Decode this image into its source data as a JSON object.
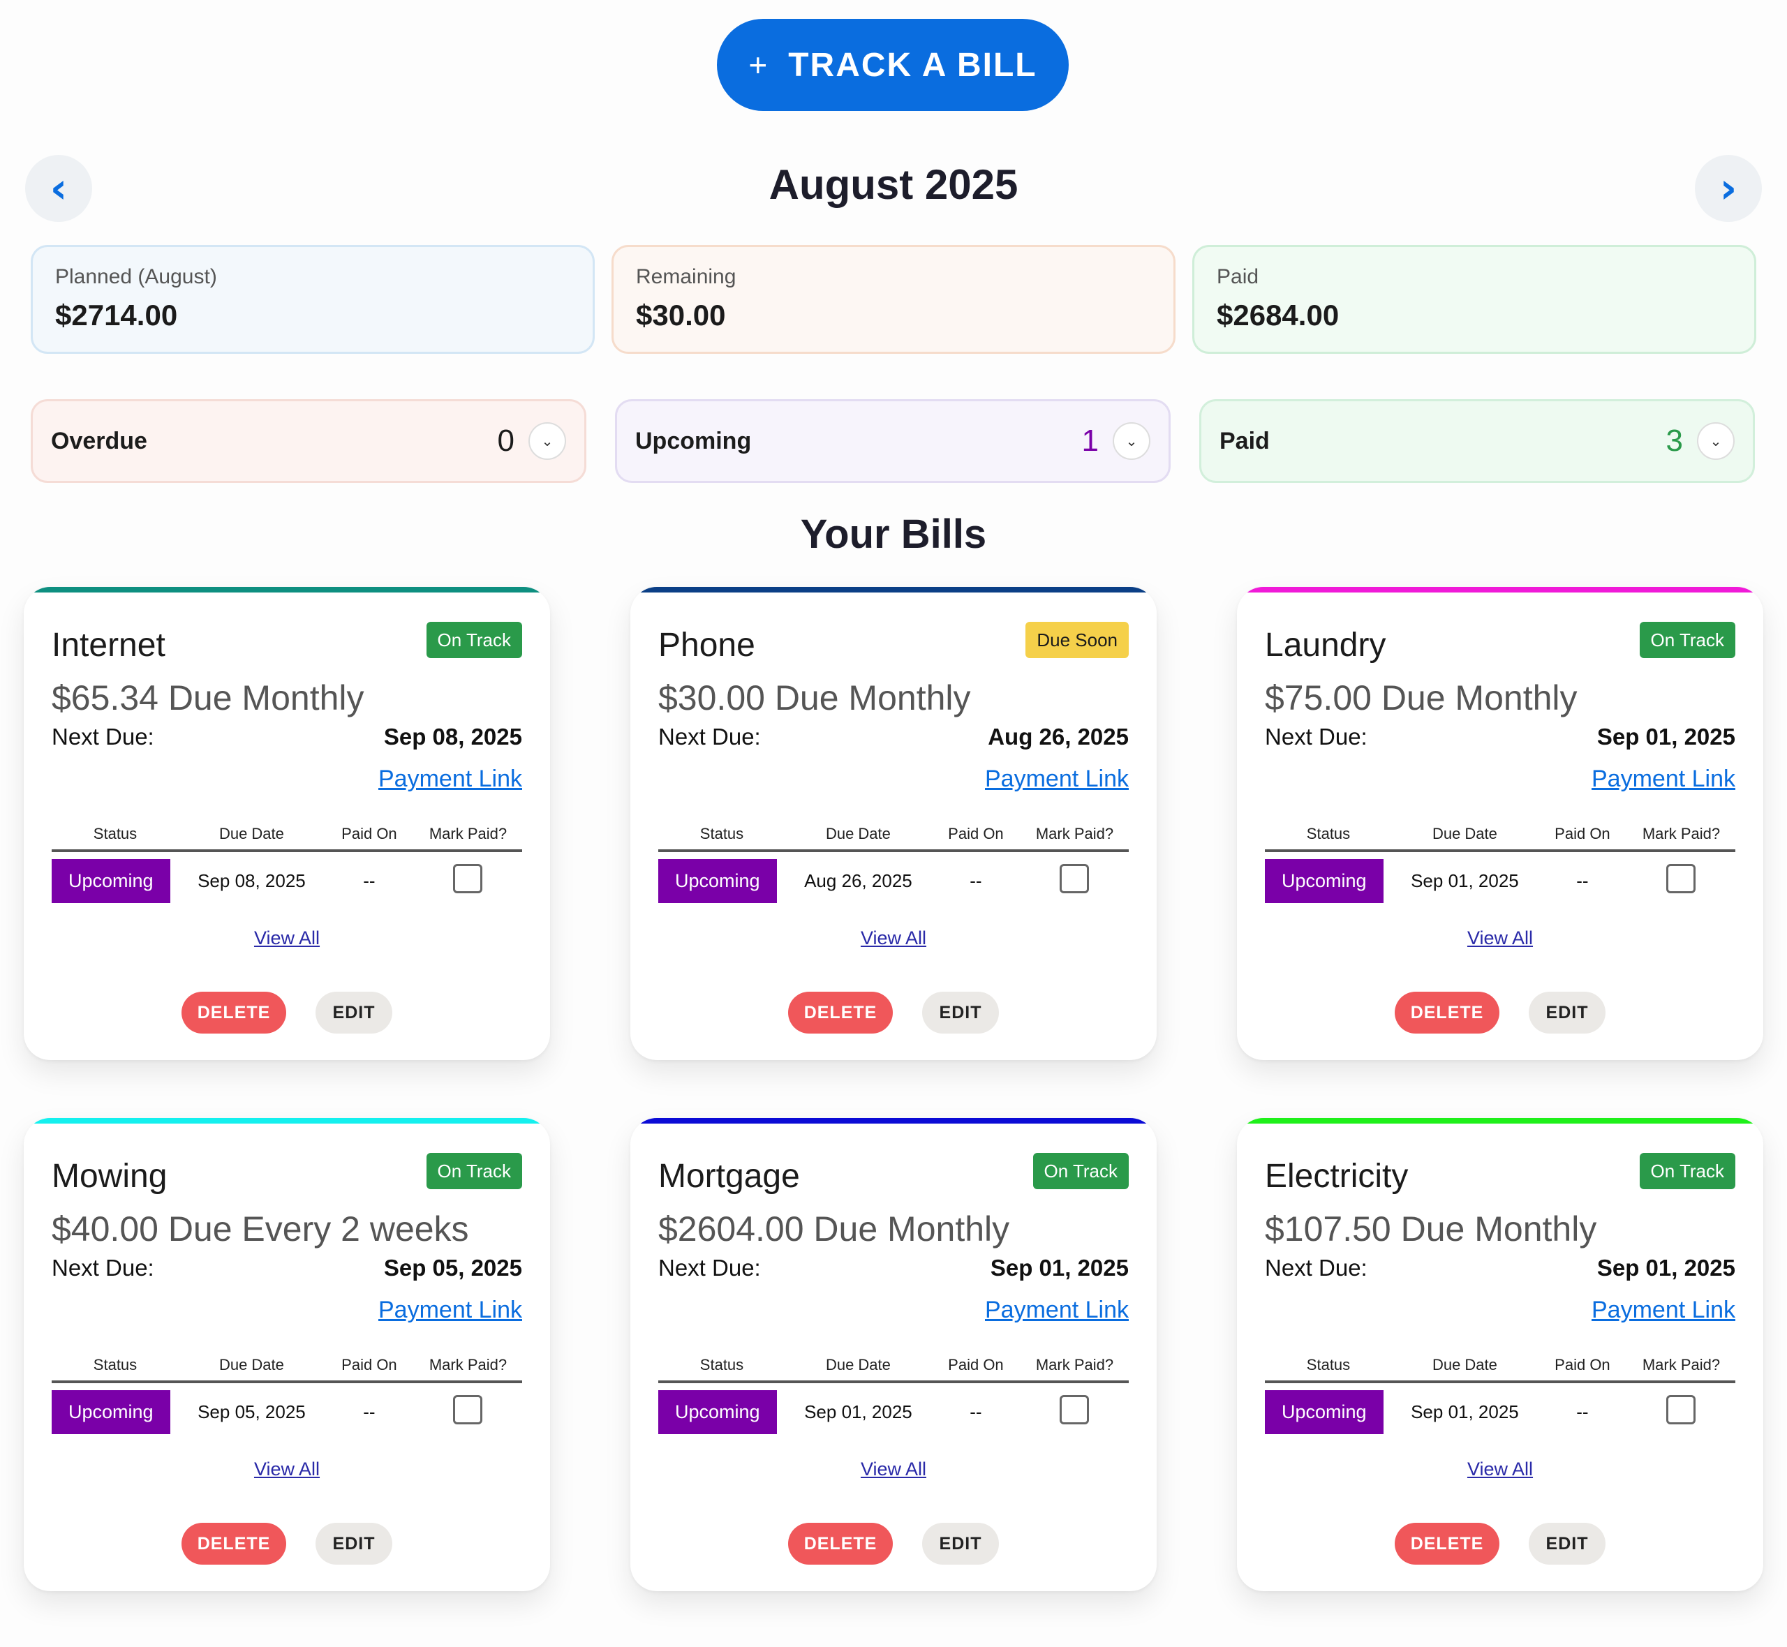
{
  "header": {
    "track_label": "TRACK A BILL",
    "plus_icon": "+",
    "month": "August 2025",
    "prev": "‹",
    "next": "›"
  },
  "summary": {
    "planned": {
      "label": "Planned (August)",
      "value": "$2714.00"
    },
    "remaining": {
      "label": "Remaining",
      "value": "$30.00"
    },
    "paid": {
      "label": "Paid",
      "value": "$2684.00"
    }
  },
  "counts": {
    "overdue": {
      "label": "Overdue",
      "count": "0",
      "color": "#1b1b1b"
    },
    "upcoming": {
      "label": "Upcoming",
      "count": "1",
      "color": "#7a00a8"
    },
    "paid": {
      "label": "Paid",
      "count": "3",
      "color": "#2a9a4a"
    }
  },
  "section_title": "Your Bills",
  "table_headers": {
    "status": "Status",
    "due": "Due Date",
    "paid_on": "Paid On",
    "mark": "Mark Paid?"
  },
  "common": {
    "next_due_label": "Next Due:",
    "payment_link": "Payment Link",
    "view_all": "View All",
    "delete": "DELETE",
    "edit": "EDIT"
  },
  "bills": [
    {
      "name": "Internet",
      "badge": "On Track",
      "amount": "$65.34 Due Monthly",
      "next_due": "Sep 08, 2025",
      "row": {
        "status": "Upcoming",
        "due": "Sep 08, 2025",
        "paid_on": "--"
      },
      "accent": "#0e8f80"
    },
    {
      "name": "Phone",
      "badge": "Due Soon",
      "amount": "$30.00 Due Monthly",
      "next_due": "Aug 26, 2025",
      "row": {
        "status": "Upcoming",
        "due": "Aug 26, 2025",
        "paid_on": "--"
      },
      "accent": "#0b3f86"
    },
    {
      "name": "Laundry",
      "badge": "On Track",
      "amount": "$75.00 Due Monthly",
      "next_due": "Sep 01, 2025",
      "row": {
        "status": "Upcoming",
        "due": "Sep 01, 2025",
        "paid_on": "--"
      },
      "accent": "#f01ad8"
    },
    {
      "name": "Mowing",
      "badge": "On Track",
      "amount": "$40.00 Due Every 2 weeks",
      "next_due": "Sep 05, 2025",
      "row": {
        "status": "Upcoming",
        "due": "Sep 05, 2025",
        "paid_on": "--"
      },
      "accent": "#14f0ee"
    },
    {
      "name": "Mortgage",
      "badge": "On Track",
      "amount": "$2604.00 Due Monthly",
      "next_due": "Sep 01, 2025",
      "row": {
        "status": "Upcoming",
        "due": "Sep 01, 2025",
        "paid_on": "--"
      },
      "accent": "#0b0bd6"
    },
    {
      "name": "Electricity",
      "badge": "On Track",
      "amount": "$107.50 Due Monthly",
      "next_due": "Sep 01, 2025",
      "row": {
        "status": "Upcoming",
        "due": "Sep 01, 2025",
        "paid_on": "--"
      },
      "accent": "#1ff01a"
    }
  ]
}
